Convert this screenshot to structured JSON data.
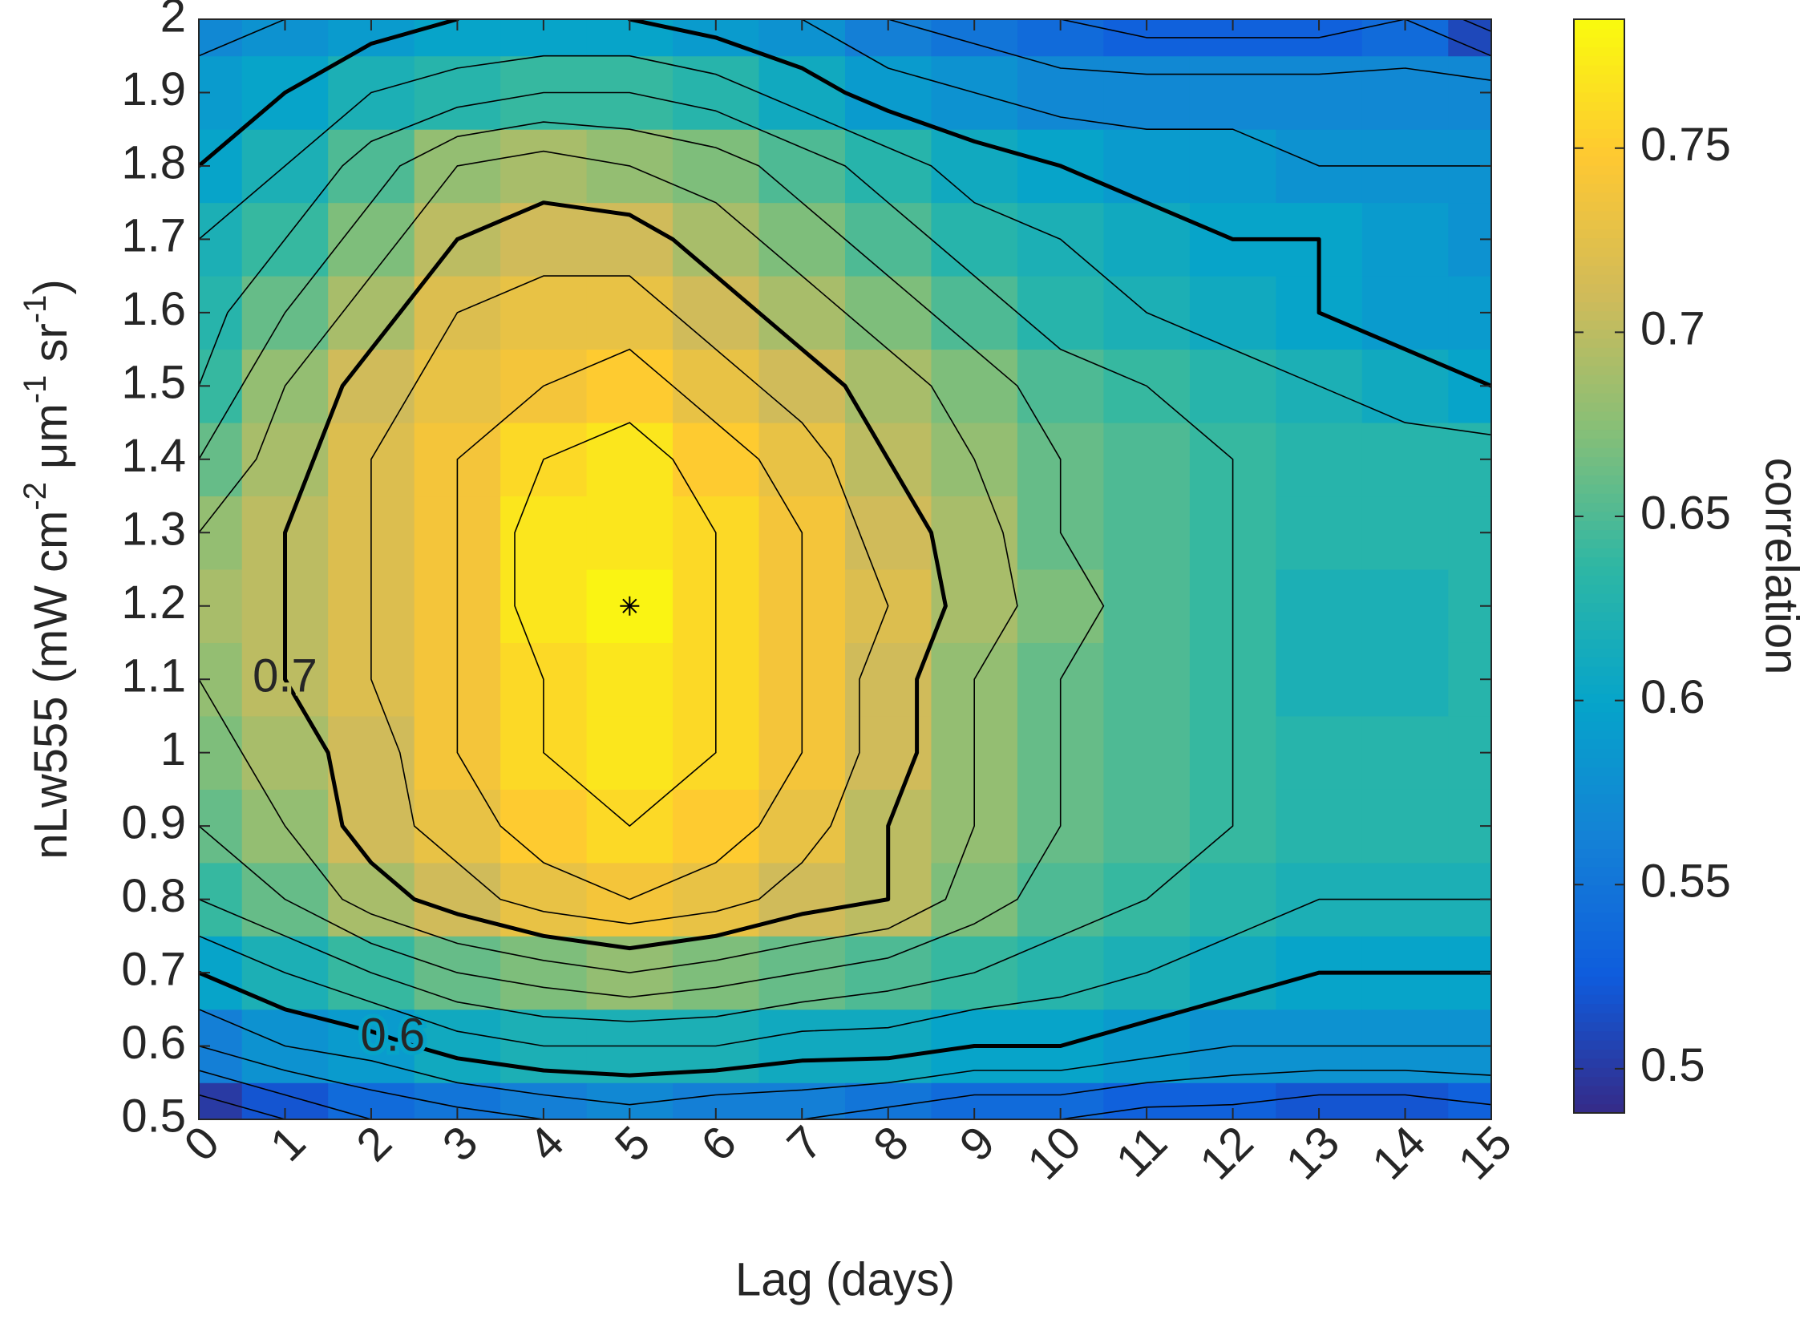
{
  "chart_data": {
    "type": "heatmap",
    "xlabel": "Lag (days)",
    "ylabel": [
      "nLw555 (mW cm",
      "-2",
      " μm",
      "-1",
      " sr",
      "-1",
      ")"
    ],
    "colorbar_label": "correlation",
    "x": [
      0,
      1,
      2,
      3,
      4,
      5,
      6,
      7,
      8,
      9,
      10,
      11,
      12,
      13,
      14,
      15
    ],
    "y": [
      0.5,
      0.6,
      0.7,
      0.8,
      0.9,
      1.0,
      1.1,
      1.2,
      1.3,
      1.4,
      1.5,
      1.6,
      1.7,
      1.8,
      1.9,
      2.0
    ],
    "z": [
      [
        0.5,
        0.52,
        0.54,
        0.55,
        0.56,
        0.57,
        0.56,
        0.56,
        0.55,
        0.54,
        0.54,
        0.53,
        0.53,
        0.52,
        0.52,
        0.53
      ],
      [
        0.56,
        0.58,
        0.59,
        0.61,
        0.62,
        0.62,
        0.62,
        0.61,
        0.61,
        0.6,
        0.6,
        0.59,
        0.58,
        0.58,
        0.58,
        0.58
      ],
      [
        0.6,
        0.62,
        0.64,
        0.66,
        0.67,
        0.68,
        0.67,
        0.66,
        0.65,
        0.64,
        0.63,
        0.62,
        0.61,
        0.6,
        0.6,
        0.6
      ],
      [
        0.64,
        0.66,
        0.69,
        0.71,
        0.73,
        0.74,
        0.73,
        0.71,
        0.7,
        0.67,
        0.65,
        0.64,
        0.63,
        0.62,
        0.62,
        0.62
      ],
      [
        0.66,
        0.68,
        0.71,
        0.73,
        0.75,
        0.76,
        0.75,
        0.73,
        0.7,
        0.68,
        0.66,
        0.65,
        0.64,
        0.63,
        0.63,
        0.63
      ],
      [
        0.67,
        0.69,
        0.71,
        0.74,
        0.76,
        0.77,
        0.76,
        0.74,
        0.71,
        0.68,
        0.66,
        0.65,
        0.64,
        0.63,
        0.63,
        0.63
      ],
      [
        0.68,
        0.7,
        0.72,
        0.74,
        0.76,
        0.77,
        0.76,
        0.74,
        0.71,
        0.68,
        0.66,
        0.65,
        0.64,
        0.62,
        0.62,
        0.63
      ],
      [
        0.69,
        0.7,
        0.72,
        0.74,
        0.77,
        0.78,
        0.76,
        0.74,
        0.72,
        0.69,
        0.67,
        0.65,
        0.64,
        0.62,
        0.62,
        0.63
      ],
      [
        0.68,
        0.7,
        0.72,
        0.74,
        0.77,
        0.77,
        0.76,
        0.74,
        0.71,
        0.69,
        0.66,
        0.65,
        0.64,
        0.63,
        0.63,
        0.63
      ],
      [
        0.66,
        0.69,
        0.72,
        0.74,
        0.76,
        0.77,
        0.75,
        0.73,
        0.7,
        0.68,
        0.66,
        0.65,
        0.64,
        0.63,
        0.63,
        0.63
      ],
      [
        0.64,
        0.68,
        0.71,
        0.73,
        0.74,
        0.75,
        0.73,
        0.71,
        0.69,
        0.67,
        0.65,
        0.64,
        0.63,
        0.62,
        0.61,
        0.6
      ],
      [
        0.63,
        0.66,
        0.69,
        0.72,
        0.73,
        0.73,
        0.71,
        0.69,
        0.67,
        0.65,
        0.63,
        0.62,
        0.61,
        0.6,
        0.59,
        0.59
      ],
      [
        0.62,
        0.64,
        0.67,
        0.7,
        0.71,
        0.71,
        0.69,
        0.67,
        0.65,
        0.63,
        0.62,
        0.61,
        0.6,
        0.6,
        0.59,
        0.58
      ],
      [
        0.6,
        0.62,
        0.65,
        0.68,
        0.69,
        0.68,
        0.67,
        0.65,
        0.63,
        0.61,
        0.6,
        0.59,
        0.59,
        0.58,
        0.58,
        0.58
      ],
      [
        0.59,
        0.6,
        0.62,
        0.63,
        0.64,
        0.64,
        0.63,
        0.61,
        0.59,
        0.58,
        0.57,
        0.57,
        0.57,
        0.57,
        0.57,
        0.57
      ],
      [
        0.57,
        0.58,
        0.59,
        0.6,
        0.6,
        0.6,
        0.59,
        0.58,
        0.56,
        0.55,
        0.54,
        0.53,
        0.53,
        0.53,
        0.54,
        0.51
      ]
    ],
    "xlim": [
      0,
      15
    ],
    "ylim": [
      0.5,
      2
    ],
    "xticks": [
      0,
      1,
      2,
      3,
      4,
      5,
      6,
      7,
      8,
      9,
      10,
      11,
      12,
      13,
      14,
      15
    ],
    "yticks": [
      0.5,
      0.6,
      0.7,
      0.8,
      0.9,
      1,
      1.1,
      1.2,
      1.3,
      1.4,
      1.5,
      1.6,
      1.7,
      1.8,
      1.9,
      2
    ],
    "clim": [
      0.488,
      0.785
    ],
    "cticks": [
      0.5,
      0.55,
      0.6,
      0.65,
      0.7,
      0.75
    ],
    "colormap": [
      "#352a87",
      "#0f5cdd",
      "#1481d6",
      "#06a4ca",
      "#2eb7a4",
      "#87bf77",
      "#d1bb59",
      "#fec832",
      "#f9fb0e"
    ],
    "contour_levels": [
      0.5,
      0.52,
      0.54,
      0.56,
      0.58,
      0.6,
      0.62,
      0.64,
      0.66,
      0.68,
      0.7,
      0.72,
      0.74,
      0.76,
      0.78
    ],
    "contour_labels": [
      {
        "value": 0.6,
        "label": "0.6"
      },
      {
        "value": 0.7,
        "label": "0.7"
      }
    ],
    "peak": {
      "x": 5,
      "y": 1.2
    }
  }
}
